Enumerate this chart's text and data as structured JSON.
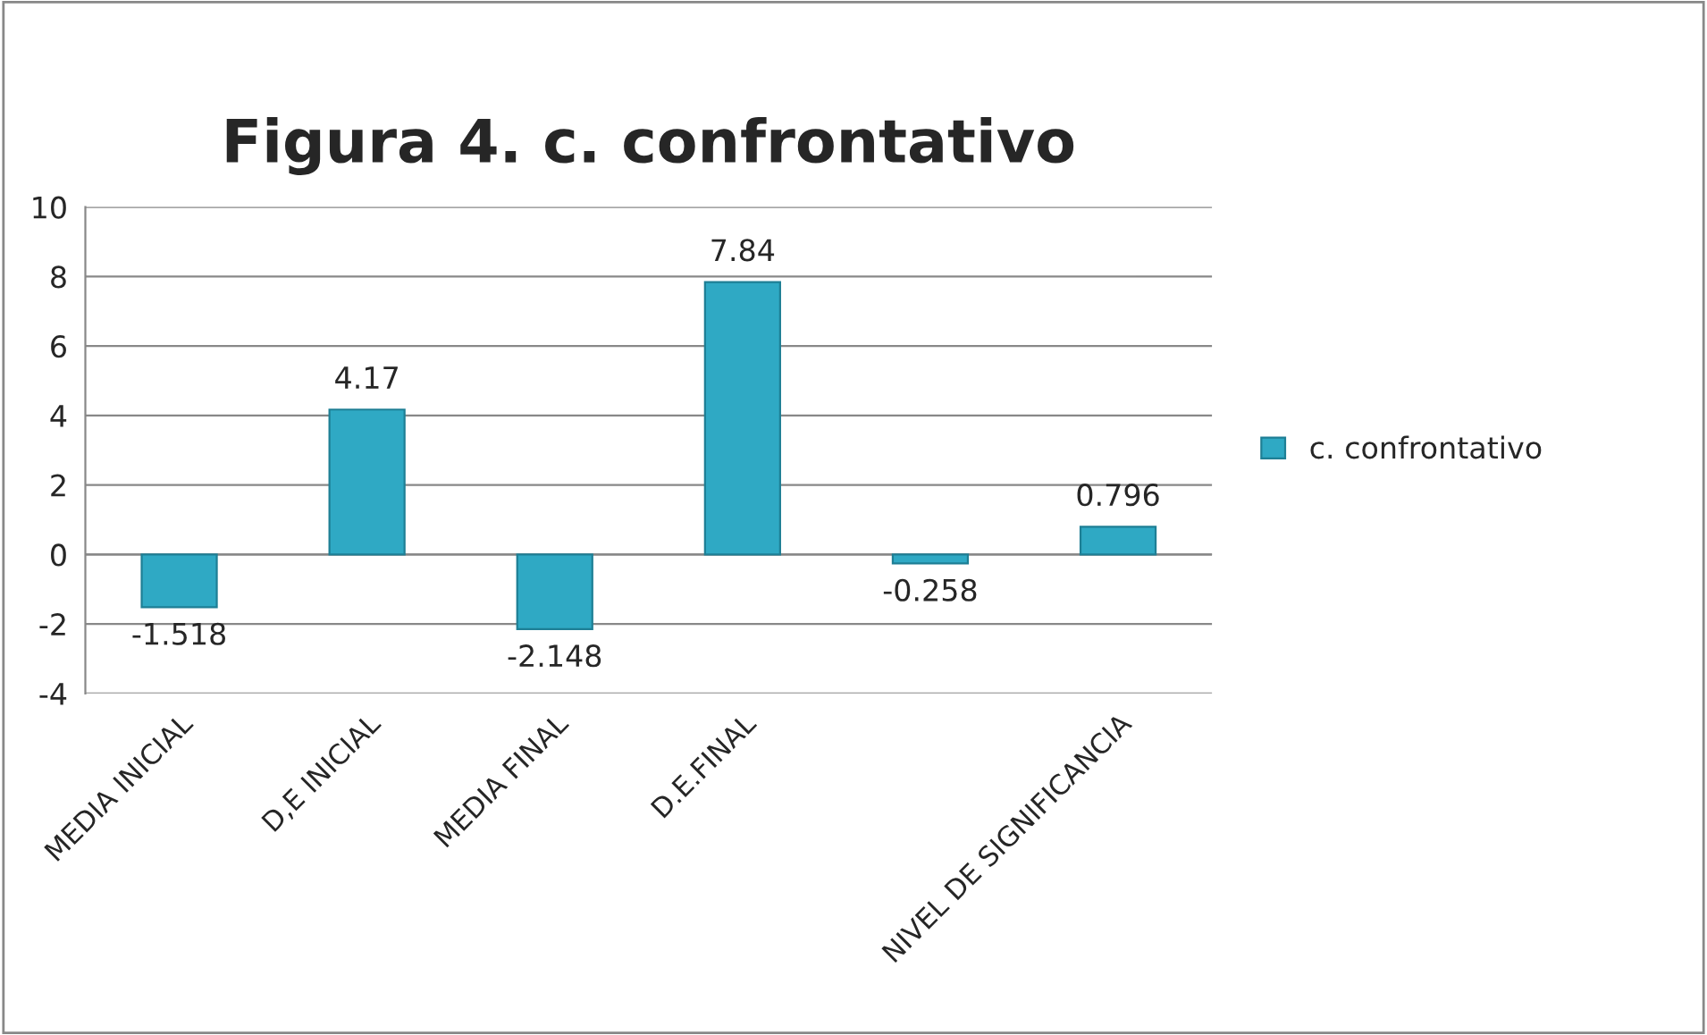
{
  "chart_data": {
    "type": "bar",
    "title": "Figura 4. c. confrontativo",
    "categories": [
      "MEDIA INICIAL",
      "D,E INICIAL",
      "MEDIA FINAL",
      "D.E.FINAL",
      null,
      "NIVEL DE SIGNIFICANCIA"
    ],
    "series": [
      {
        "name": "c. confrontativo",
        "color": "#2fa9c4",
        "values": [
          -1.518,
          4.17,
          -2.148,
          7.84,
          -0.258,
          0.796
        ]
      }
    ],
    "ylim": [
      -4,
      10
    ],
    "yticks": [
      -4,
      -2,
      0,
      2,
      4,
      6,
      8,
      10
    ],
    "grid": "y",
    "legend": "right",
    "data_labels": true
  }
}
